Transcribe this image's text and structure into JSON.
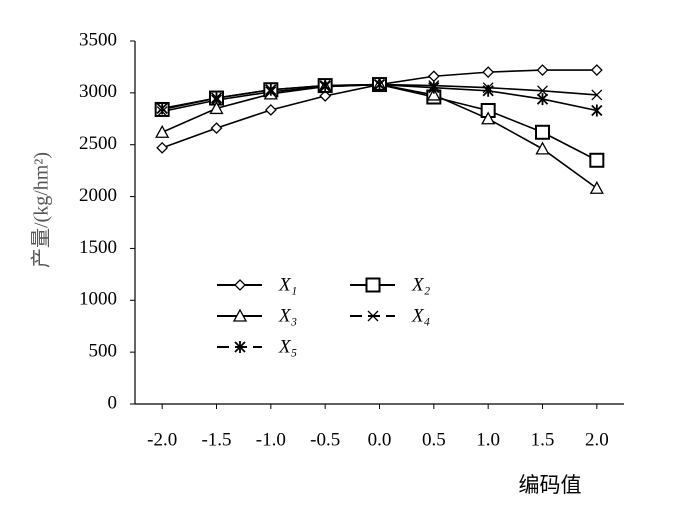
{
  "chart_data": {
    "type": "line",
    "x": [
      {
        "value": -2,
        "label": "-2.0"
      },
      {
        "value": -1.5,
        "label": "-1.5"
      },
      {
        "value": -1,
        "label": "-1.0"
      },
      {
        "value": -0.5,
        "label": "-0.5"
      },
      {
        "value": 0,
        "label": "0.0"
      },
      0.5,
      {
        "value": 1,
        "label": "1.0"
      },
      1.5,
      {
        "value": 2,
        "label": "2.0"
      }
    ],
    "xlabel": "编码值",
    "ylabel": "产量/(kg/hm²)",
    "xlim": [
      -2.25,
      2.25
    ],
    "ylim": [
      0,
      3500
    ],
    "yticks": [
      0,
      500,
      1000,
      1500,
      2000,
      2500,
      3000,
      3500
    ],
    "series": [
      {
        "name": "X₁",
        "color": "#000000",
        "marker": "diamond",
        "dash": false,
        "values": [
          2470,
          2660,
          2835,
          2970,
          3080,
          3160,
          3200,
          3220,
          3220
        ]
      },
      {
        "name": "X₂",
        "color": "#000000",
        "marker": "square",
        "dash": false,
        "values": [
          2840,
          2950,
          3030,
          3070,
          3080,
          2960,
          2830,
          2620,
          2350
        ]
      },
      {
        "name": "X₃",
        "color": "#000000",
        "marker": "triangle",
        "dash": false,
        "values": [
          2620,
          2850,
          2990,
          3060,
          3080,
          2980,
          2750,
          2460,
          2080
        ]
      },
      {
        "name": "X₄",
        "color": "#000000",
        "marker": "cross",
        "dash": true,
        "values": [
          2820,
          2930,
          3010,
          3060,
          3080,
          3070,
          3050,
          3020,
          2980
        ]
      },
      {
        "name": "X₅",
        "color": "#000000",
        "marker": "asterisk",
        "dash": true,
        "values": [
          2850,
          2950,
          3030,
          3070,
          3080,
          3050,
          3020,
          2940,
          2830
        ]
      }
    ]
  }
}
